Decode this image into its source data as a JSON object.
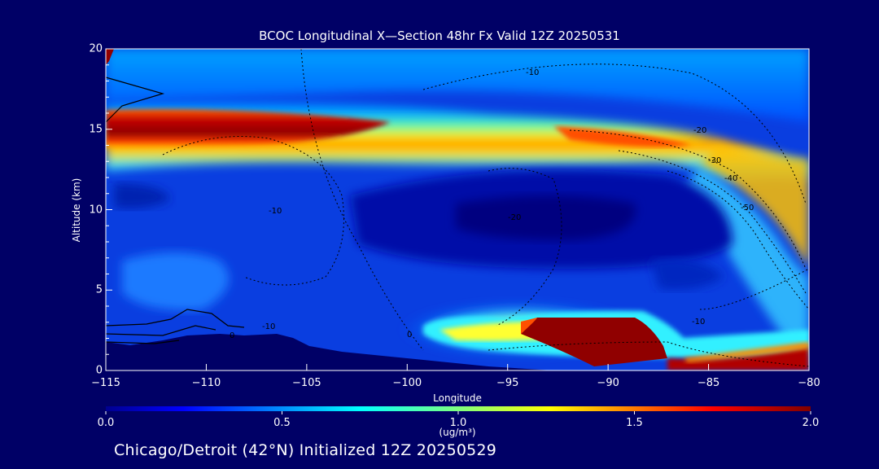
{
  "chart_data": {
    "type": "heatmap",
    "title": "BCOC Longitudinal X—Section 48hr  Fx Valid 12Z 20250531",
    "xlabel": "Longitude",
    "ylabel": "Altitude (km)",
    "xlim": [
      -115,
      -80
    ],
    "ylim": [
      0,
      20
    ],
    "x_ticks": [
      -115,
      -110,
      -105,
      -100,
      -95,
      -90,
      -85,
      -80
    ],
    "x_tick_labels": [
      "−115",
      "−110",
      "−105",
      "−100",
      "−95",
      "−90",
      "−85",
      "−80"
    ],
    "y_ticks": [
      0,
      5,
      10,
      15,
      20
    ],
    "y_tick_labels": [
      "0",
      "5",
      "10",
      "15",
      "20"
    ],
    "colorbar": {
      "range": [
        0.0,
        2.0
      ],
      "ticks": [
        0.0,
        0.5,
        1.0,
        1.5,
        2.0
      ],
      "tick_labels": [
        "0.0",
        "0.5",
        "1.0",
        "1.5",
        "2.0"
      ],
      "unit_label": "(ug/m³)",
      "colormap": "jet"
    },
    "temperature_contour_labels": [
      "-10",
      "-20",
      "-30",
      "-40",
      "-50",
      "-10",
      "-20",
      "-10",
      "0",
      "0",
      "-10"
    ],
    "features": [
      {
        "description": "upper layer",
        "lon_range": [
          -115,
          -87
        ],
        "alt_range": [
          13.5,
          16
        ],
        "peak_value": 2.0
      },
      {
        "description": "upper layer eastern extension",
        "lon_range": [
          -87,
          -80
        ],
        "alt_range": [
          11,
          15
        ],
        "peak_value": 1.2
      },
      {
        "description": "lower plume",
        "lon_range": [
          -94,
          -87
        ],
        "alt_range": [
          0.5,
          3.5
        ],
        "peak_value": 2.0
      },
      {
        "description": "surface layer east",
        "lon_range": [
          -87,
          -80
        ],
        "alt_range": [
          0,
          1.5
        ],
        "peak_value": 2.0
      }
    ]
  },
  "footer_text": "Chicago/Detroit (42°N) Initialized 12Z 20250529",
  "colors": {
    "background": "#000066",
    "plot_low": "#0000a0",
    "plot_high": "#800000"
  }
}
